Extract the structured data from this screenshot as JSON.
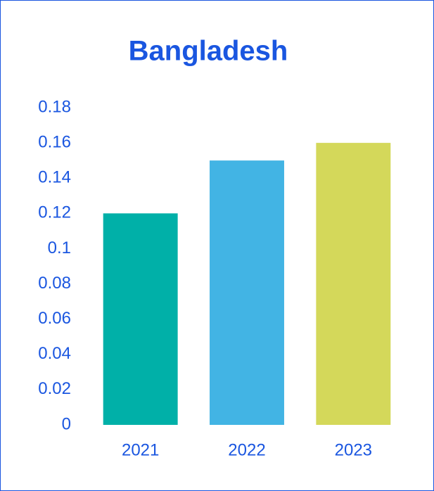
{
  "chart_data": {
    "type": "bar",
    "title": "Bangladesh",
    "categories": [
      "2021",
      "2022",
      "2023"
    ],
    "values": [
      0.12,
      0.15,
      0.16
    ],
    "colors": [
      "#00b0a8",
      "#42b4e4",
      "#d4d85a"
    ],
    "ylim": [
      0,
      0.18
    ],
    "yticks": [
      0,
      0.02,
      0.04,
      0.06,
      0.08,
      0.1,
      0.12,
      0.14,
      0.16,
      0.18
    ],
    "grid": false
  }
}
